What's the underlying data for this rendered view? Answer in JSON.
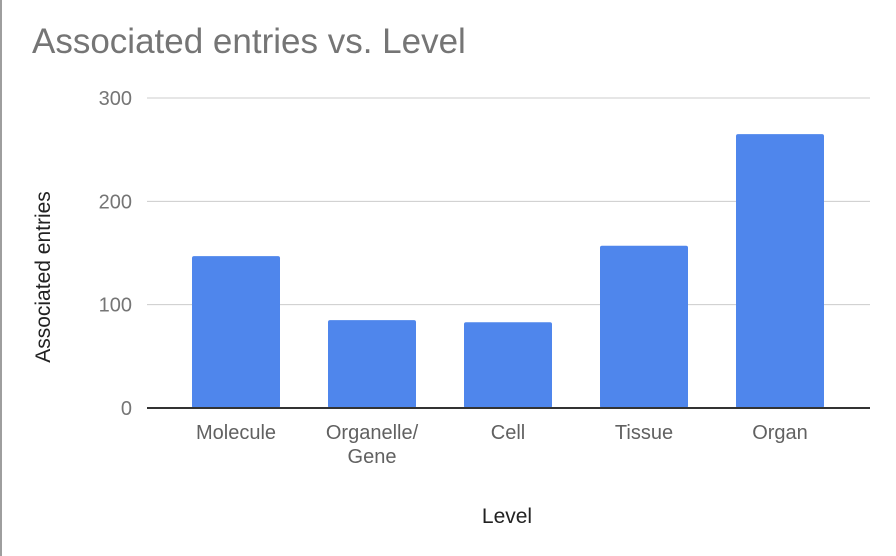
{
  "chart_data": {
    "type": "bar",
    "title": "Associated entries vs. Level",
    "xlabel": "Level",
    "ylabel": "Associated entries",
    "categories": [
      [
        "Molecule"
      ],
      [
        "Organelle/",
        "Gene"
      ],
      [
        "Cell"
      ],
      [
        "Tissue"
      ],
      [
        "Organ"
      ]
    ],
    "values": [
      147,
      85,
      83,
      157,
      265
    ],
    "ylim": [
      0,
      300
    ],
    "yticks": [
      0,
      100,
      200,
      300
    ],
    "bar_color": "#4f86ec",
    "grid": true,
    "legend": "none"
  }
}
